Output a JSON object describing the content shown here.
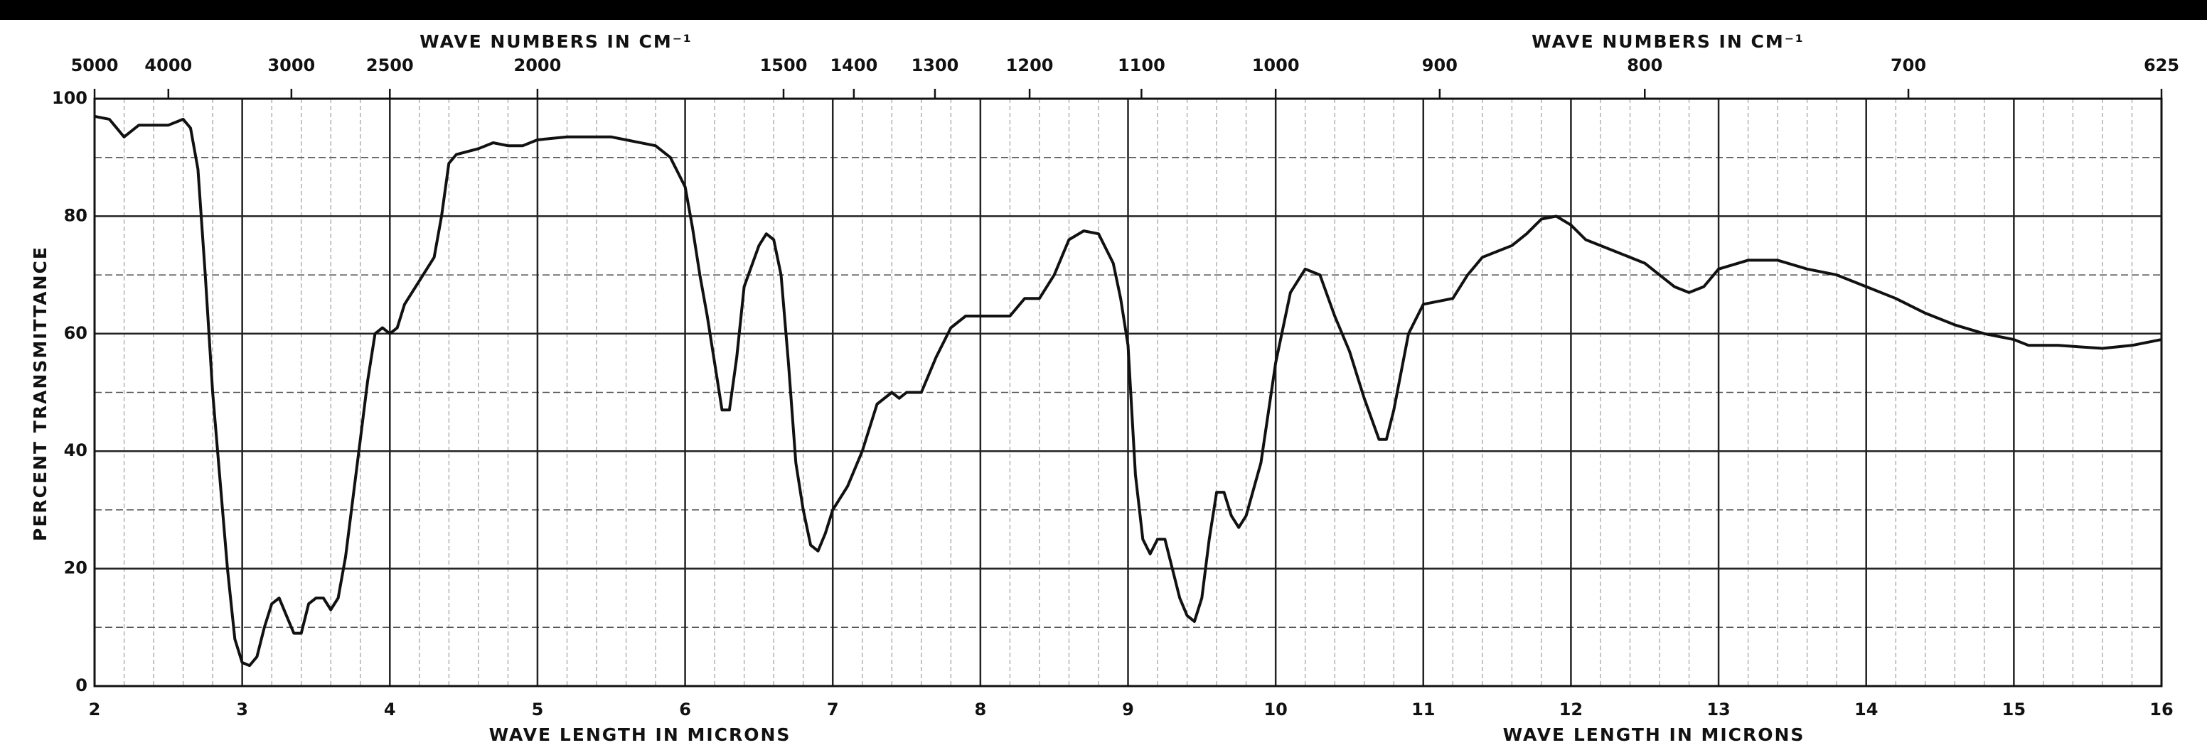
{
  "chart_data": {
    "type": "line",
    "x_title_top_left": "WAVE NUMBERS IN CM⁻¹",
    "x_title_top_right": "WAVE NUMBERS IN CM⁻¹",
    "x_title_bottom_left": "WAVE LENGTH IN MICRONS",
    "x_title_bottom_right": "WAVE LENGTH IN MICRONS",
    "y_title": "PERCENT TRANSMITTANCE",
    "x": [
      2.0,
      2.1,
      2.2,
      2.3,
      2.4,
      2.5,
      2.6,
      2.65,
      2.7,
      2.75,
      2.8,
      2.85,
      2.9,
      2.95,
      3.0,
      3.05,
      3.1,
      3.15,
      3.2,
      3.25,
      3.3,
      3.35,
      3.4,
      3.45,
      3.5,
      3.55,
      3.6,
      3.65,
      3.7,
      3.75,
      3.8,
      3.85,
      3.9,
      3.95,
      4.0,
      4.05,
      4.1,
      4.2,
      4.3,
      4.35,
      4.4,
      4.45,
      4.6,
      4.7,
      4.8,
      4.9,
      5.0,
      5.2,
      5.5,
      5.8,
      5.9,
      6.0,
      6.05,
      6.1,
      6.15,
      6.2,
      6.25,
      6.3,
      6.35,
      6.4,
      6.5,
      6.55,
      6.6,
      6.65,
      6.7,
      6.75,
      6.8,
      6.85,
      6.9,
      6.95,
      7.0,
      7.1,
      7.2,
      7.3,
      7.4,
      7.45,
      7.5,
      7.6,
      7.7,
      7.8,
      7.9,
      8.0,
      8.1,
      8.2,
      8.3,
      8.4,
      8.5,
      8.6,
      8.7,
      8.8,
      8.9,
      8.95,
      9.0,
      9.05,
      9.1,
      9.15,
      9.2,
      9.25,
      9.3,
      9.35,
      9.4,
      9.45,
      9.5,
      9.55,
      9.6,
      9.65,
      9.7,
      9.75,
      9.8,
      9.9,
      10.0,
      10.1,
      10.2,
      10.3,
      10.4,
      10.5,
      10.6,
      10.7,
      10.75,
      10.8,
      10.9,
      11.0,
      11.1,
      11.2,
      11.3,
      11.4,
      11.5,
      11.6,
      11.7,
      11.8,
      11.9,
      12.0,
      12.1,
      12.3,
      12.5,
      12.7,
      12.8,
      12.9,
      13.0,
      13.2,
      13.4,
      13.6,
      13.8,
      14.0,
      14.2,
      14.4,
      14.6,
      14.8,
      15.0,
      15.1,
      15.3,
      15.6,
      15.8,
      16.0
    ],
    "values": [
      97,
      96.5,
      93.5,
      95.5,
      95.5,
      95.5,
      96.5,
      95,
      88,
      70,
      50,
      35,
      20,
      8,
      4,
      3.5,
      5,
      10,
      14,
      15,
      12,
      9,
      9,
      14,
      15,
      15,
      13,
      15,
      22,
      32,
      42,
      52,
      60,
      61,
      60,
      61,
      65,
      69,
      73,
      80,
      89,
      90.5,
      91.5,
      92.5,
      92,
      92,
      93,
      93.5,
      93.5,
      92,
      90,
      85,
      78,
      70,
      63,
      55,
      47,
      47,
      56,
      68,
      75,
      77,
      76,
      70,
      55,
      38,
      30,
      24,
      23,
      26,
      30,
      34,
      40,
      48,
      50,
      49,
      50,
      50,
      56,
      61,
      63,
      63,
      63,
      63,
      66,
      66,
      70,
      76,
      77.5,
      77,
      72,
      66,
      58,
      36,
      25,
      22.5,
      25,
      25,
      20,
      15,
      12,
      11,
      15,
      25,
      33,
      33,
      29,
      27,
      29,
      38,
      55,
      67,
      71,
      70,
      63,
      57,
      49,
      42,
      42,
      47,
      60,
      65,
      65.5,
      66,
      70,
      73,
      74,
      75,
      77,
      79.5,
      80,
      78.5,
      76,
      74,
      72,
      68,
      67,
      68,
      71,
      72.5,
      72.5,
      71,
      70,
      68,
      66,
      63.5,
      61.5,
      60,
      59,
      58,
      58,
      57.5,
      58,
      59
    ],
    "color": "#111111",
    "xlim": [
      2,
      16
    ],
    "xticks": [
      2,
      3,
      4,
      5,
      6,
      7,
      8,
      9,
      10,
      11,
      12,
      13,
      14,
      15,
      16
    ],
    "x2ticks": [
      5000,
      4000,
      3000,
      2500,
      2000,
      1500,
      1400,
      1300,
      1200,
      1100,
      1000,
      900,
      800,
      700,
      625
    ],
    "ylim": [
      0,
      100
    ],
    "yticks": [
      0,
      20,
      40,
      60,
      80,
      100
    ],
    "grid": true
  }
}
